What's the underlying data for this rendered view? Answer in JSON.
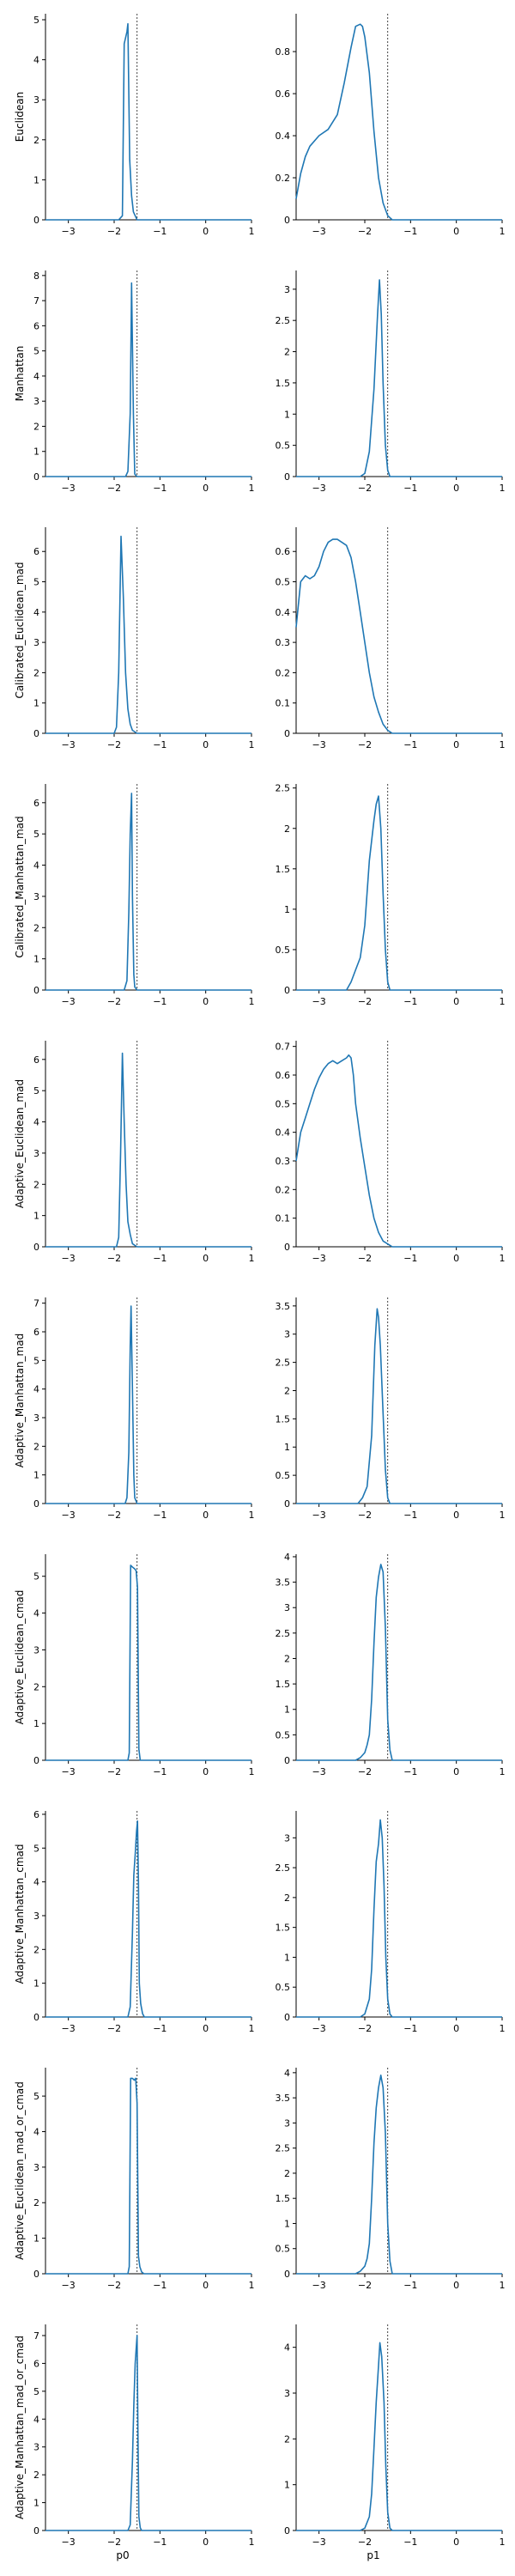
{
  "chart_data": {
    "type": "line",
    "layout": "grid",
    "columns": [
      "p0",
      "p1"
    ],
    "rows": [
      "Euclidean",
      "Manhattan",
      "Calibrated_Euclidean_mad",
      "Calibrated_Manhattan_mad",
      "Adaptive_Euclidean_mad",
      "Adaptive_Manhattan_mad",
      "Adaptive_Euclidean_cmad",
      "Adaptive_Manhattan_cmad",
      "Adaptive_Euclidean_mad_or_cmad",
      "Adaptive_Manhattan_mad_or_cmad"
    ],
    "xlim": [
      -3.5,
      1
    ],
    "xticks": [
      -3,
      -2,
      -1,
      0,
      1
    ],
    "reference_line": {
      "p0": -1.5,
      "p1": -1.5,
      "style": "dotted"
    },
    "grid": false,
    "line_color": "#1f77b4",
    "panels": [
      {
        "row": "Euclidean",
        "col": "p0",
        "ylim": [
          0,
          5.15
        ],
        "yticks": [
          0,
          1,
          2,
          3,
          4,
          5
        ],
        "x": [
          -3.5,
          -1.9,
          -1.82,
          -1.78,
          -1.72,
          -1.7,
          -1.66,
          -1.62,
          -1.58,
          -1.5,
          1
        ],
        "y": [
          0,
          0,
          0.1,
          4.4,
          4.7,
          4.9,
          1.5,
          0.6,
          0.2,
          0,
          0
        ]
      },
      {
        "row": "Euclidean",
        "col": "p1",
        "ylim": [
          0,
          0.98
        ],
        "yticks": [
          0,
          0.2,
          0.4,
          0.6,
          0.8
        ],
        "x": [
          -3.5,
          -3.4,
          -3.3,
          -3.2,
          -3.0,
          -2.8,
          -2.6,
          -2.45,
          -2.3,
          -2.2,
          -2.1,
          -2.05,
          -2.0,
          -1.9,
          -1.8,
          -1.7,
          -1.6,
          -1.5,
          -1.4,
          -1.3,
          1
        ],
        "y": [
          0.1,
          0.22,
          0.3,
          0.35,
          0.4,
          0.43,
          0.5,
          0.65,
          0.82,
          0.92,
          0.93,
          0.92,
          0.87,
          0.7,
          0.42,
          0.2,
          0.08,
          0.02,
          0,
          0,
          0
        ]
      },
      {
        "row": "Manhattan",
        "col": "p0",
        "ylim": [
          0,
          8.2
        ],
        "yticks": [
          0,
          1,
          2,
          3,
          4,
          5,
          6,
          7,
          8
        ],
        "x": [
          -3.5,
          -1.75,
          -1.7,
          -1.65,
          -1.62,
          -1.58,
          -1.55,
          -1.5,
          1
        ],
        "y": [
          0,
          0,
          0.2,
          2.5,
          7.7,
          2.5,
          0.1,
          0,
          0
        ]
      },
      {
        "row": "Manhattan",
        "col": "p1",
        "ylim": [
          0,
          3.3
        ],
        "yticks": [
          0,
          0.5,
          1.0,
          1.5,
          2.0,
          2.5,
          3.0
        ],
        "x": [
          -3.5,
          -2.1,
          -2.0,
          -1.9,
          -1.8,
          -1.72,
          -1.68,
          -1.64,
          -1.6,
          -1.55,
          -1.5,
          -1.45,
          1
        ],
        "y": [
          0,
          0,
          0.05,
          0.4,
          1.4,
          2.6,
          3.15,
          2.6,
          1.5,
          0.5,
          0.1,
          0,
          0
        ]
      },
      {
        "row": "Calibrated_Euclidean_mad",
        "col": "p0",
        "ylim": [
          0,
          6.8
        ],
        "yticks": [
          0,
          1,
          2,
          3,
          4,
          5,
          6
        ],
        "x": [
          -3.5,
          -2.0,
          -1.95,
          -1.9,
          -1.85,
          -1.8,
          -1.75,
          -1.7,
          -1.65,
          -1.6,
          -1.5,
          1
        ],
        "y": [
          0,
          0,
          0.2,
          2.0,
          6.5,
          4.5,
          2.0,
          0.8,
          0.3,
          0.1,
          0,
          0
        ]
      },
      {
        "row": "Calibrated_Euclidean_mad",
        "col": "p1",
        "ylim": [
          0,
          0.68
        ],
        "yticks": [
          0,
          0.1,
          0.2,
          0.3,
          0.4,
          0.5,
          0.6
        ],
        "x": [
          -3.5,
          -3.4,
          -3.3,
          -3.2,
          -3.1,
          -3.0,
          -2.9,
          -2.8,
          -2.7,
          -2.6,
          -2.5,
          -2.4,
          -2.3,
          -2.2,
          -2.1,
          -2.0,
          -1.9,
          -1.8,
          -1.7,
          -1.6,
          -1.5,
          -1.4,
          -1.3,
          1
        ],
        "y": [
          0.35,
          0.5,
          0.52,
          0.51,
          0.52,
          0.55,
          0.6,
          0.63,
          0.64,
          0.64,
          0.63,
          0.62,
          0.58,
          0.5,
          0.4,
          0.3,
          0.2,
          0.12,
          0.07,
          0.03,
          0.01,
          0,
          0,
          0
        ]
      },
      {
        "row": "Calibrated_Manhattan_mad",
        "col": "p0",
        "ylim": [
          0,
          6.6
        ],
        "yticks": [
          0,
          1,
          2,
          3,
          4,
          5,
          6
        ],
        "x": [
          -3.5,
          -1.78,
          -1.72,
          -1.68,
          -1.65,
          -1.62,
          -1.6,
          -1.57,
          -1.55,
          -1.5,
          1
        ],
        "y": [
          0,
          0,
          0.3,
          2.5,
          5.0,
          6.3,
          3.0,
          0.5,
          0.1,
          0,
          0
        ]
      },
      {
        "row": "Calibrated_Manhattan_mad",
        "col": "p1",
        "ylim": [
          0,
          2.55
        ],
        "yticks": [
          0,
          0.5,
          1.0,
          1.5,
          2.0,
          2.5
        ],
        "x": [
          -3.5,
          -2.4,
          -2.3,
          -2.2,
          -2.1,
          -2.0,
          -1.9,
          -1.8,
          -1.75,
          -1.7,
          -1.65,
          -1.6,
          -1.55,
          -1.5,
          -1.45,
          1
        ],
        "y": [
          0,
          0,
          0.1,
          0.25,
          0.4,
          0.8,
          1.6,
          2.1,
          2.3,
          2.4,
          2.0,
          1.2,
          0.5,
          0.1,
          0,
          0
        ]
      },
      {
        "row": "Adaptive_Euclidean_mad",
        "col": "p0",
        "ylim": [
          0,
          6.6
        ],
        "yticks": [
          0,
          1,
          2,
          3,
          4,
          5,
          6
        ],
        "x": [
          -3.5,
          -1.95,
          -1.9,
          -1.86,
          -1.82,
          -1.78,
          -1.74,
          -1.7,
          -1.65,
          -1.6,
          -1.5,
          1
        ],
        "y": [
          0,
          0,
          0.3,
          3.0,
          6.2,
          4.0,
          2.0,
          0.8,
          0.4,
          0.1,
          0,
          0
        ]
      },
      {
        "row": "Adaptive_Euclidean_mad",
        "col": "p1",
        "ylim": [
          0,
          0.72
        ],
        "yticks": [
          0,
          0.1,
          0.2,
          0.3,
          0.4,
          0.5,
          0.6,
          0.7
        ],
        "x": [
          -3.5,
          -3.4,
          -3.3,
          -3.2,
          -3.1,
          -3.0,
          -2.9,
          -2.8,
          -2.7,
          -2.6,
          -2.5,
          -2.4,
          -2.35,
          -2.3,
          -2.25,
          -2.2,
          -2.1,
          -2.0,
          -1.9,
          -1.8,
          -1.7,
          -1.6,
          -1.5,
          -1.4,
          -1.3,
          1
        ],
        "y": [
          0.3,
          0.4,
          0.45,
          0.5,
          0.55,
          0.59,
          0.62,
          0.64,
          0.65,
          0.64,
          0.65,
          0.66,
          0.67,
          0.66,
          0.6,
          0.5,
          0.38,
          0.28,
          0.18,
          0.1,
          0.05,
          0.02,
          0.01,
          0,
          0,
          0
        ]
      },
      {
        "row": "Adaptive_Manhattan_mad",
        "col": "p0",
        "ylim": [
          0,
          7.2
        ],
        "yticks": [
          0,
          1,
          2,
          3,
          4,
          5,
          6,
          7
        ],
        "x": [
          -3.5,
          -1.76,
          -1.72,
          -1.68,
          -1.65,
          -1.63,
          -1.6,
          -1.57,
          -1.55,
          -1.5,
          1
        ],
        "y": [
          0,
          0,
          0.2,
          1.8,
          5.5,
          6.9,
          4.0,
          1.0,
          0.2,
          0,
          0
        ]
      },
      {
        "row": "Adaptive_Manhattan_mad",
        "col": "p1",
        "ylim": [
          0,
          3.65
        ],
        "yticks": [
          0,
          0.5,
          1.0,
          1.5,
          2.0,
          2.5,
          3.0,
          3.5
        ],
        "x": [
          -3.5,
          -2.15,
          -2.05,
          -1.95,
          -1.85,
          -1.78,
          -1.73,
          -1.7,
          -1.66,
          -1.6,
          -1.55,
          -1.5,
          -1.45,
          1
        ],
        "y": [
          0,
          0,
          0.1,
          0.3,
          1.2,
          2.8,
          3.45,
          3.3,
          2.8,
          1.6,
          0.6,
          0.1,
          0,
          0
        ]
      },
      {
        "row": "Adaptive_Euclidean_cmad",
        "col": "p0",
        "ylim": [
          0,
          5.6
        ],
        "yticks": [
          0,
          1,
          2,
          3,
          4,
          5
        ],
        "x": [
          -3.5,
          -1.7,
          -1.67,
          -1.64,
          -1.6,
          -1.55,
          -1.52,
          -1.49,
          -1.46,
          -1.43,
          1
        ],
        "y": [
          0,
          0,
          0.2,
          5.3,
          5.25,
          5.2,
          5.15,
          4.7,
          0.3,
          0,
          0
        ]
      },
      {
        "row": "Adaptive_Euclidean_cmad",
        "col": "p1",
        "ylim": [
          0,
          4.05
        ],
        "yticks": [
          0,
          0.5,
          1.0,
          1.5,
          2.0,
          2.5,
          3.0,
          3.5,
          4.0
        ],
        "x": [
          -3.5,
          -2.2,
          -2.1,
          -2.0,
          -1.95,
          -1.9,
          -1.85,
          -1.8,
          -1.75,
          -1.7,
          -1.65,
          -1.6,
          -1.55,
          -1.5,
          -1.45,
          -1.4,
          1
        ],
        "y": [
          0,
          0,
          0.05,
          0.15,
          0.3,
          0.5,
          1.2,
          2.3,
          3.2,
          3.6,
          3.85,
          3.7,
          2.6,
          0.8,
          0.2,
          0,
          0
        ]
      },
      {
        "row": "Adaptive_Manhattan_cmad",
        "col": "p0",
        "ylim": [
          0,
          6.1
        ],
        "yticks": [
          0,
          1,
          2,
          3,
          4,
          5,
          6
        ],
        "x": [
          -3.5,
          -1.7,
          -1.65,
          -1.6,
          -1.57,
          -1.54,
          -1.51,
          -1.49,
          -1.47,
          -1.45,
          -1.42,
          -1.38,
          -1.34,
          1
        ],
        "y": [
          0,
          0,
          0.3,
          2.5,
          4.2,
          4.8,
          5.5,
          5.8,
          4.0,
          1.0,
          0.4,
          0.1,
          0,
          0
        ]
      },
      {
        "row": "Adaptive_Manhattan_cmad",
        "col": "p1",
        "ylim": [
          0,
          3.45
        ],
        "yticks": [
          0,
          0.5,
          1.0,
          1.5,
          2.0,
          2.5,
          3.0
        ],
        "x": [
          -3.5,
          -2.1,
          -2.0,
          -1.9,
          -1.85,
          -1.8,
          -1.75,
          -1.7,
          -1.66,
          -1.62,
          -1.58,
          -1.54,
          -1.5,
          -1.45,
          -1.4,
          1
        ],
        "y": [
          0,
          0,
          0.05,
          0.3,
          0.8,
          1.8,
          2.6,
          2.9,
          3.3,
          3.0,
          2.2,
          1.0,
          0.3,
          0.05,
          0,
          0
        ]
      },
      {
        "row": "Adaptive_Euclidean_mad_or_cmad",
        "col": "p0",
        "ylim": [
          0,
          5.8
        ],
        "yticks": [
          0,
          1,
          2,
          3,
          4,
          5
        ],
        "x": [
          -3.5,
          -1.7,
          -1.67,
          -1.64,
          -1.6,
          -1.56,
          -1.53,
          -1.5,
          -1.47,
          -1.44,
          -1.4,
          -1.35,
          1
        ],
        "y": [
          0,
          0,
          0.2,
          5.5,
          5.5,
          5.45,
          5.5,
          4.8,
          0.5,
          0.2,
          0.05,
          0,
          0
        ]
      },
      {
        "row": "Adaptive_Euclidean_mad_or_cmad",
        "col": "p1",
        "ylim": [
          0,
          4.1
        ],
        "yticks": [
          0,
          0.5,
          1.0,
          1.5,
          2.0,
          2.5,
          3.0,
          3.5,
          4.0
        ],
        "x": [
          -3.5,
          -2.2,
          -2.1,
          -2.0,
          -1.95,
          -1.9,
          -1.85,
          -1.8,
          -1.75,
          -1.7,
          -1.65,
          -1.6,
          -1.55,
          -1.5,
          -1.45,
          -1.4,
          1
        ],
        "y": [
          0,
          0,
          0.05,
          0.15,
          0.3,
          0.6,
          1.5,
          2.6,
          3.3,
          3.7,
          3.95,
          3.7,
          2.8,
          1.0,
          0.25,
          0,
          0
        ]
      },
      {
        "row": "Adaptive_Manhattan_mad_or_cmad",
        "col": "p0",
        "ylim": [
          0,
          7.4
        ],
        "yticks": [
          0,
          1,
          2,
          3,
          4,
          5,
          6,
          7
        ],
        "x": [
          -3.5,
          -1.7,
          -1.65,
          -1.6,
          -1.57,
          -1.54,
          -1.52,
          -1.5,
          -1.48,
          -1.46,
          -1.43,
          -1.4,
          1
        ],
        "y": [
          0,
          0,
          0.2,
          2.5,
          4.5,
          6.0,
          6.5,
          7.0,
          3.5,
          0.5,
          0.1,
          0,
          0
        ]
      },
      {
        "row": "Adaptive_Manhattan_mad_or_cmad",
        "col": "p1",
        "ylim": [
          0,
          4.5
        ],
        "yticks": [
          0,
          1,
          2,
          3,
          4
        ],
        "x": [
          -3.5,
          -2.1,
          -2.0,
          -1.9,
          -1.85,
          -1.8,
          -1.75,
          -1.7,
          -1.67,
          -1.63,
          -1.58,
          -1.54,
          -1.5,
          -1.45,
          -1.4,
          1
        ],
        "y": [
          0,
          0,
          0.05,
          0.3,
          0.8,
          1.8,
          2.8,
          3.6,
          4.1,
          3.8,
          2.8,
          1.4,
          0.4,
          0.05,
          0,
          0
        ]
      }
    ]
  }
}
